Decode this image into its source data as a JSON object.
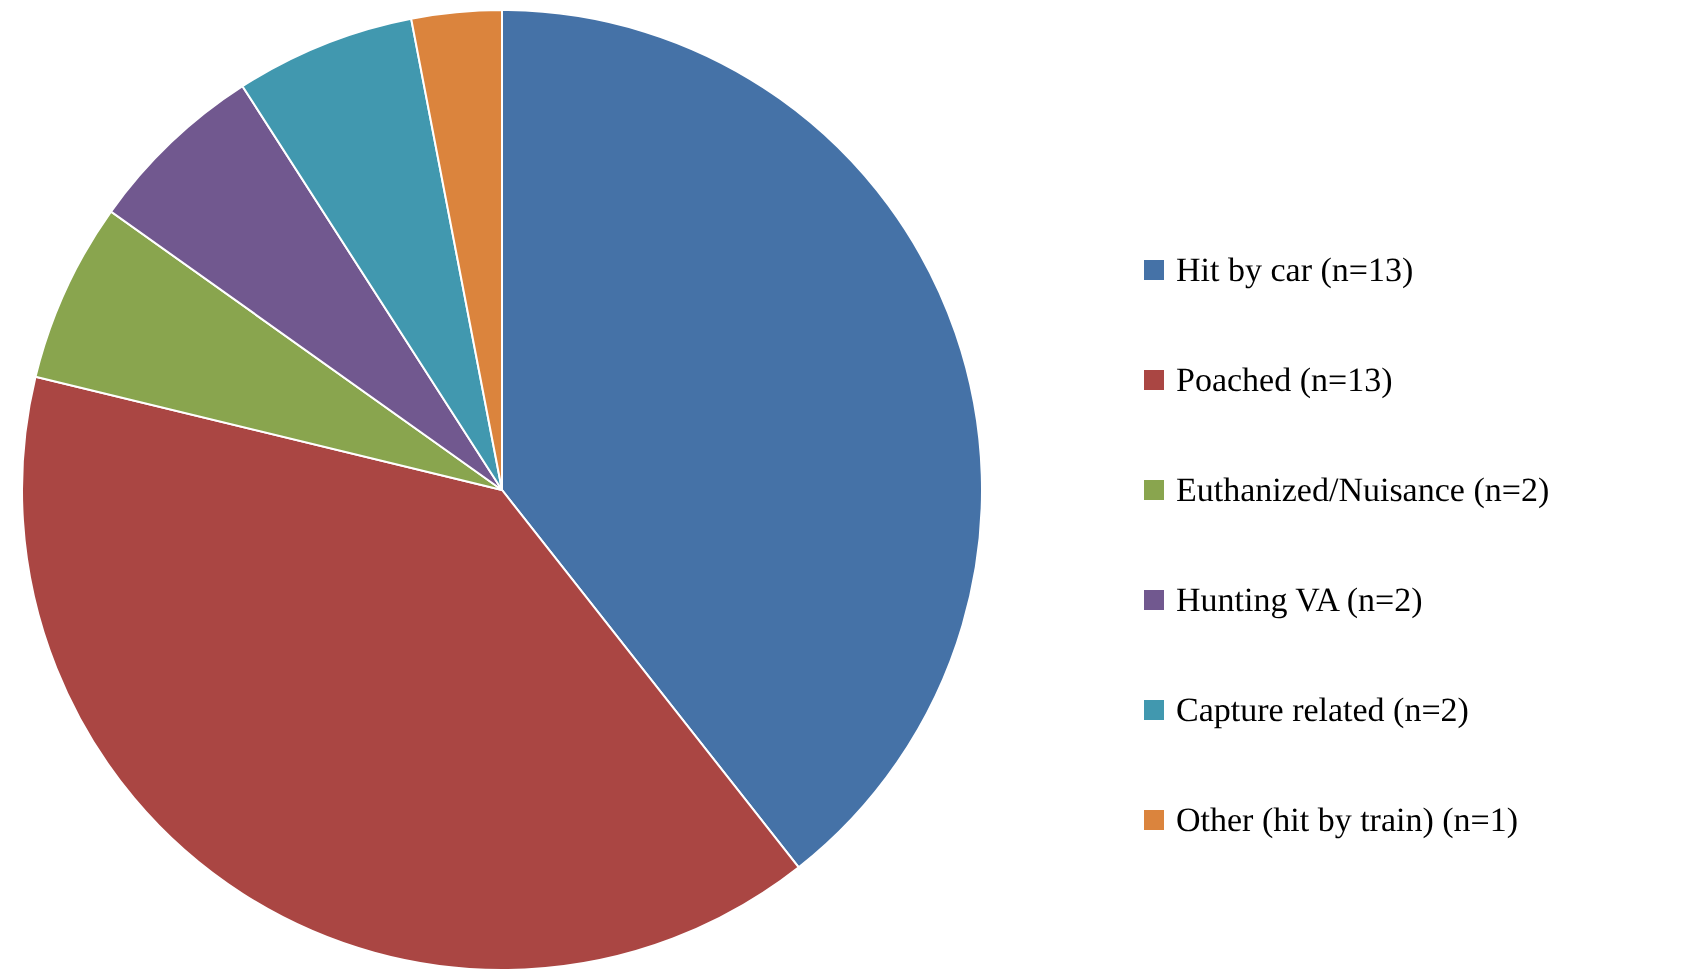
{
  "chart_data": {
    "type": "pie",
    "categories": [
      "Hit by car (n=13)",
      "Poached (n=13)",
      "Euthanized/Nuisance (n=2)",
      "Hunting VA (n=2)",
      "Capture related (n=2)",
      "Other (hit by train) (n=1)"
    ],
    "values": [
      13,
      13,
      2,
      2,
      2,
      1
    ],
    "colors": [
      "#4572a7",
      "#aa4643",
      "#89a54e",
      "#71588f",
      "#4198af",
      "#db843d"
    ],
    "legend": "right"
  }
}
